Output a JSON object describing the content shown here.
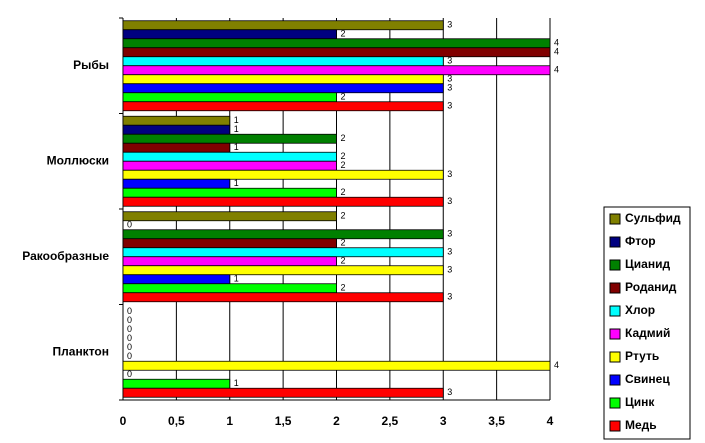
{
  "chart_data": {
    "type": "hbar",
    "categories": [
      "Рыбы",
      "Моллюски",
      "Ракообразные",
      "Планктон"
    ],
    "series": [
      {
        "name": "Сульфид",
        "color": "#808000",
        "values": [
          3,
          1,
          2,
          0
        ]
      },
      {
        "name": "Фтор",
        "color": "#000080",
        "values": [
          2,
          1,
          0,
          0
        ]
      },
      {
        "name": "Цианид",
        "color": "#008000",
        "values": [
          4,
          2,
          3,
          0
        ]
      },
      {
        "name": "Роданид",
        "color": "#800000",
        "values": [
          4,
          1,
          2,
          0
        ]
      },
      {
        "name": "Хлор",
        "color": "#00ffff",
        "values": [
          3,
          2,
          3,
          0
        ]
      },
      {
        "name": "Кадмий",
        "color": "#ff00ff",
        "values": [
          4,
          2,
          2,
          0
        ]
      },
      {
        "name": "Ртуть",
        "color": "#ffff00",
        "values": [
          3,
          3,
          3,
          4
        ]
      },
      {
        "name": "Свинец",
        "color": "#0000ff",
        "values": [
          3,
          1,
          1,
          0
        ]
      },
      {
        "name": "Цинк",
        "color": "#00ff00",
        "values": [
          2,
          2,
          2,
          1
        ]
      },
      {
        "name": "Медь",
        "color": "#ff0000",
        "values": [
          3,
          3,
          3,
          3
        ]
      }
    ],
    "xlim": [
      0,
      4
    ],
    "xticks": [
      0,
      {
        "value": 0.5,
        "label": "0,5"
      },
      1,
      {
        "value": 1.5,
        "label": "1,5"
      },
      2,
      {
        "value": 2.5,
        "label": "2,5"
      },
      3,
      {
        "value": 3.5,
        "label": "3,5"
      },
      4
    ],
    "grid": true
  }
}
